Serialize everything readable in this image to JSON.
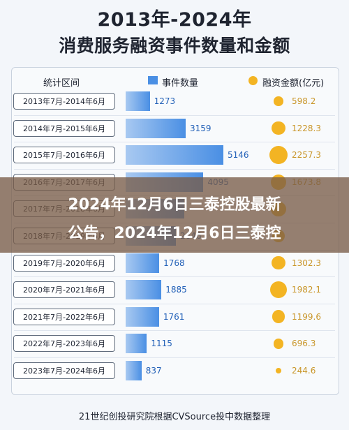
{
  "title_line1": "2013年-2024年",
  "title_line2": "消费服务融资事件数量和金额",
  "headers": {
    "period": "统计区间",
    "count": "事件数量",
    "amount": "融资金额(亿元)"
  },
  "overlay": {
    "line1": "2024年12月6日三泰控股最新",
    "line2": "公告，2024年12月6日三泰控"
  },
  "source": "21世纪创投研究院根据CVSource投中数据整理",
  "colors": {
    "bar": "#4a8fe4",
    "bubble": "#f3b423",
    "overlay": "#785c48"
  },
  "chart_data": {
    "type": "bar",
    "categories": [
      "2013年7月-2014年6月",
      "2014年7月-2015年6月",
      "2015年7月-2016年6月",
      "2016年7月-2017年6月",
      "2017年7月-2018年6月",
      "2018年7月-2019年6月",
      "2019年7月-2020年6月",
      "2020年7月-2021年6月",
      "2021年7月-2022年6月",
      "2022年7月-2023年6月",
      "2023年7月-2024年6月"
    ],
    "series": [
      {
        "name": "事件数量",
        "values": [
          1273,
          3159,
          5146,
          4095,
          3100,
          2646,
          1768,
          1885,
          1761,
          1115,
          837
        ],
        "value_labels": [
          "1273",
          "3159",
          "5146",
          "4095",
          "",
          "2646",
          "1768",
          "1885",
          "1761",
          "1115",
          "837"
        ]
      },
      {
        "name": "融资金额(亿元)",
        "values": [
          598.2,
          1228.3,
          2257.3,
          1673.8,
          1500,
          1100,
          1302.3,
          1982.1,
          1199.6,
          696.3,
          244.6
        ],
        "value_labels": [
          "598.2",
          "1228.3",
          "2257.3",
          "1673.8",
          "",
          "",
          "1302.3",
          "1982.1",
          "1199.6",
          "696.3",
          "244.6"
        ]
      }
    ],
    "count_max": 5146,
    "amount_max": 2257.3
  }
}
